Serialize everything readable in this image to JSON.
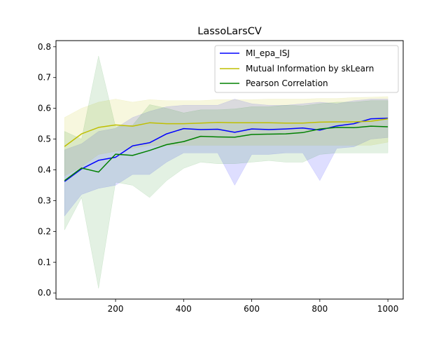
{
  "chart_data": {
    "type": "line",
    "title": "LassoLarsCV",
    "xlabel": "",
    "ylabel": "",
    "xlim": [
      25,
      1045
    ],
    "ylim": [
      -0.02,
      0.82
    ],
    "x_ticks": [
      200,
      400,
      600,
      800,
      1000
    ],
    "y_ticks": [
      0.0,
      0.1,
      0.2,
      0.3,
      0.4,
      0.5,
      0.6,
      0.7,
      0.8
    ],
    "x_tick_labels": [
      "200",
      "400",
      "600",
      "800",
      "1000"
    ],
    "y_tick_labels": [
      "0.0",
      "0.1",
      "0.2",
      "0.3",
      "0.4",
      "0.5",
      "0.6",
      "0.7",
      "0.8"
    ],
    "grid": false,
    "legend_position": "top-right",
    "x": [
      50,
      100,
      150,
      200,
      250,
      300,
      350,
      400,
      450,
      500,
      550,
      600,
      650,
      700,
      750,
      800,
      850,
      900,
      950,
      1000
    ],
    "series": [
      {
        "name": "MI_epa_ISJ",
        "color": "#0000ff",
        "band_opacity": 0.13,
        "values": [
          0.362,
          0.403,
          0.431,
          0.441,
          0.478,
          0.488,
          0.517,
          0.534,
          0.531,
          0.532,
          0.522,
          0.533,
          0.531,
          0.533,
          0.536,
          0.529,
          0.543,
          0.55,
          0.566,
          0.568
        ],
        "lower": [
          0.25,
          0.32,
          0.34,
          0.35,
          0.385,
          0.385,
          0.425,
          0.455,
          0.455,
          0.455,
          0.35,
          0.45,
          0.45,
          0.455,
          0.455,
          0.365,
          0.47,
          0.475,
          0.5,
          0.505
        ],
        "upper": [
          0.465,
          0.485,
          0.525,
          0.535,
          0.57,
          0.59,
          0.605,
          0.61,
          0.61,
          0.61,
          0.63,
          0.615,
          0.61,
          0.61,
          0.615,
          0.62,
          0.615,
          0.625,
          0.63,
          0.63
        ]
      },
      {
        "name": "Mutual Information by skLearn",
        "color": "#bfbf00",
        "band_opacity": 0.13,
        "values": [
          0.476,
          0.517,
          0.538,
          0.546,
          0.542,
          0.553,
          0.55,
          0.55,
          0.552,
          0.554,
          0.553,
          0.553,
          0.553,
          0.552,
          0.552,
          0.555,
          0.556,
          0.556,
          0.558,
          0.566
        ],
        "lower": [
          0.38,
          0.41,
          0.45,
          0.46,
          0.47,
          0.48,
          0.48,
          0.48,
          0.48,
          0.48,
          0.48,
          0.48,
          0.48,
          0.48,
          0.48,
          0.48,
          0.48,
          0.48,
          0.48,
          0.49
        ],
        "upper": [
          0.57,
          0.6,
          0.62,
          0.63,
          0.62,
          0.628,
          0.625,
          0.625,
          0.625,
          0.628,
          0.628,
          0.628,
          0.63,
          0.63,
          0.63,
          0.632,
          0.632,
          0.635,
          0.636,
          0.638
        ]
      },
      {
        "name": "Pearson Correlation",
        "color": "#008000",
        "band_opacity": 0.11,
        "values": [
          0.365,
          0.406,
          0.393,
          0.451,
          0.447,
          0.463,
          0.482,
          0.492,
          0.509,
          0.507,
          0.506,
          0.515,
          0.516,
          0.517,
          0.521,
          0.533,
          0.538,
          0.537,
          0.542,
          0.54
        ],
        "lower": [
          0.205,
          0.31,
          0.015,
          0.36,
          0.35,
          0.31,
          0.365,
          0.405,
          0.425,
          0.42,
          0.42,
          0.425,
          0.43,
          0.425,
          0.425,
          0.45,
          0.455,
          0.455,
          0.455,
          0.455
        ],
        "upper": [
          0.525,
          0.5,
          0.77,
          0.54,
          0.545,
          0.612,
          0.6,
          0.585,
          0.595,
          0.595,
          0.598,
          0.605,
          0.605,
          0.61,
          0.608,
          0.615,
          0.62,
          0.62,
          0.625,
          0.625
        ]
      }
    ]
  }
}
